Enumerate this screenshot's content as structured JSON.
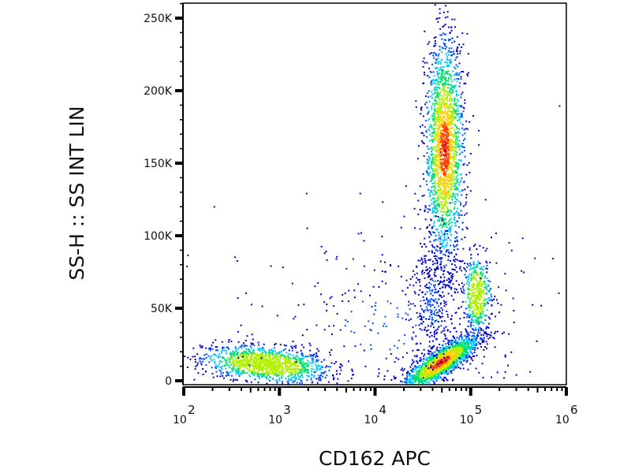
{
  "chart_data": {
    "type": "scatter",
    "subtype": "flow-cytometry density plot",
    "xlabel": "CD162 APC",
    "ylabel": "SS-H :: SS INT LIN",
    "xscale": "log",
    "xlim_log10": [
      2,
      6
    ],
    "ylim": [
      0,
      262
    ],
    "y_unit": "K",
    "x_ticks": [
      {
        "base": "10",
        "exp": "2",
        "value": 100
      },
      {
        "base": "10",
        "exp": "3",
        "value": 1000
      },
      {
        "base": "10",
        "exp": "4",
        "value": 10000
      },
      {
        "base": "10",
        "exp": "5",
        "value": 100000
      },
      {
        "base": "10",
        "exp": "6",
        "value": 1000000
      }
    ],
    "y_ticks": [
      {
        "label": "0",
        "value": 0
      },
      {
        "label": "50K",
        "value": 50
      },
      {
        "label": "100K",
        "value": 100
      },
      {
        "label": "150K",
        "value": 150
      },
      {
        "label": "200K",
        "value": 200
      },
      {
        "label": "250K",
        "value": 250
      }
    ],
    "populations": [
      {
        "name": "low-CD162 low-SS",
        "x_log10": 2.85,
        "y": 12,
        "sx_log10": 0.33,
        "sy": 6,
        "n": 1300,
        "tilt": -2
      },
      {
        "name": "CD162+ low-SS",
        "x_log10": 4.68,
        "y": 13,
        "sx_log10": 0.2,
        "sy": 5.5,
        "n": 1700,
        "tilt": 8
      },
      {
        "name": "CD162+ high-SS",
        "x_log10": 4.72,
        "y": 160,
        "sx_log10": 0.1,
        "sy": 38,
        "n": 2000,
        "tilt": 0
      },
      {
        "name": "CD162 bright mid-SS",
        "x_log10": 5.06,
        "y": 60,
        "sx_log10": 0.07,
        "sy": 13,
        "n": 450,
        "tilt": 0
      },
      {
        "name": "bridge",
        "x_log10": 4.6,
        "y": 55,
        "sx_log10": 0.12,
        "sy": 25,
        "n": 350,
        "tilt": 0
      },
      {
        "name": "background",
        "x_log10": 4.2,
        "y": 40,
        "sx_log10": 0.9,
        "sy": 35,
        "n": 350,
        "tilt": 0
      }
    ],
    "density_colors": [
      "#0000c8",
      "#0050ff",
      "#00c8ff",
      "#00e070",
      "#b0f000",
      "#ffd000",
      "#ff4000",
      "#e00000"
    ]
  }
}
